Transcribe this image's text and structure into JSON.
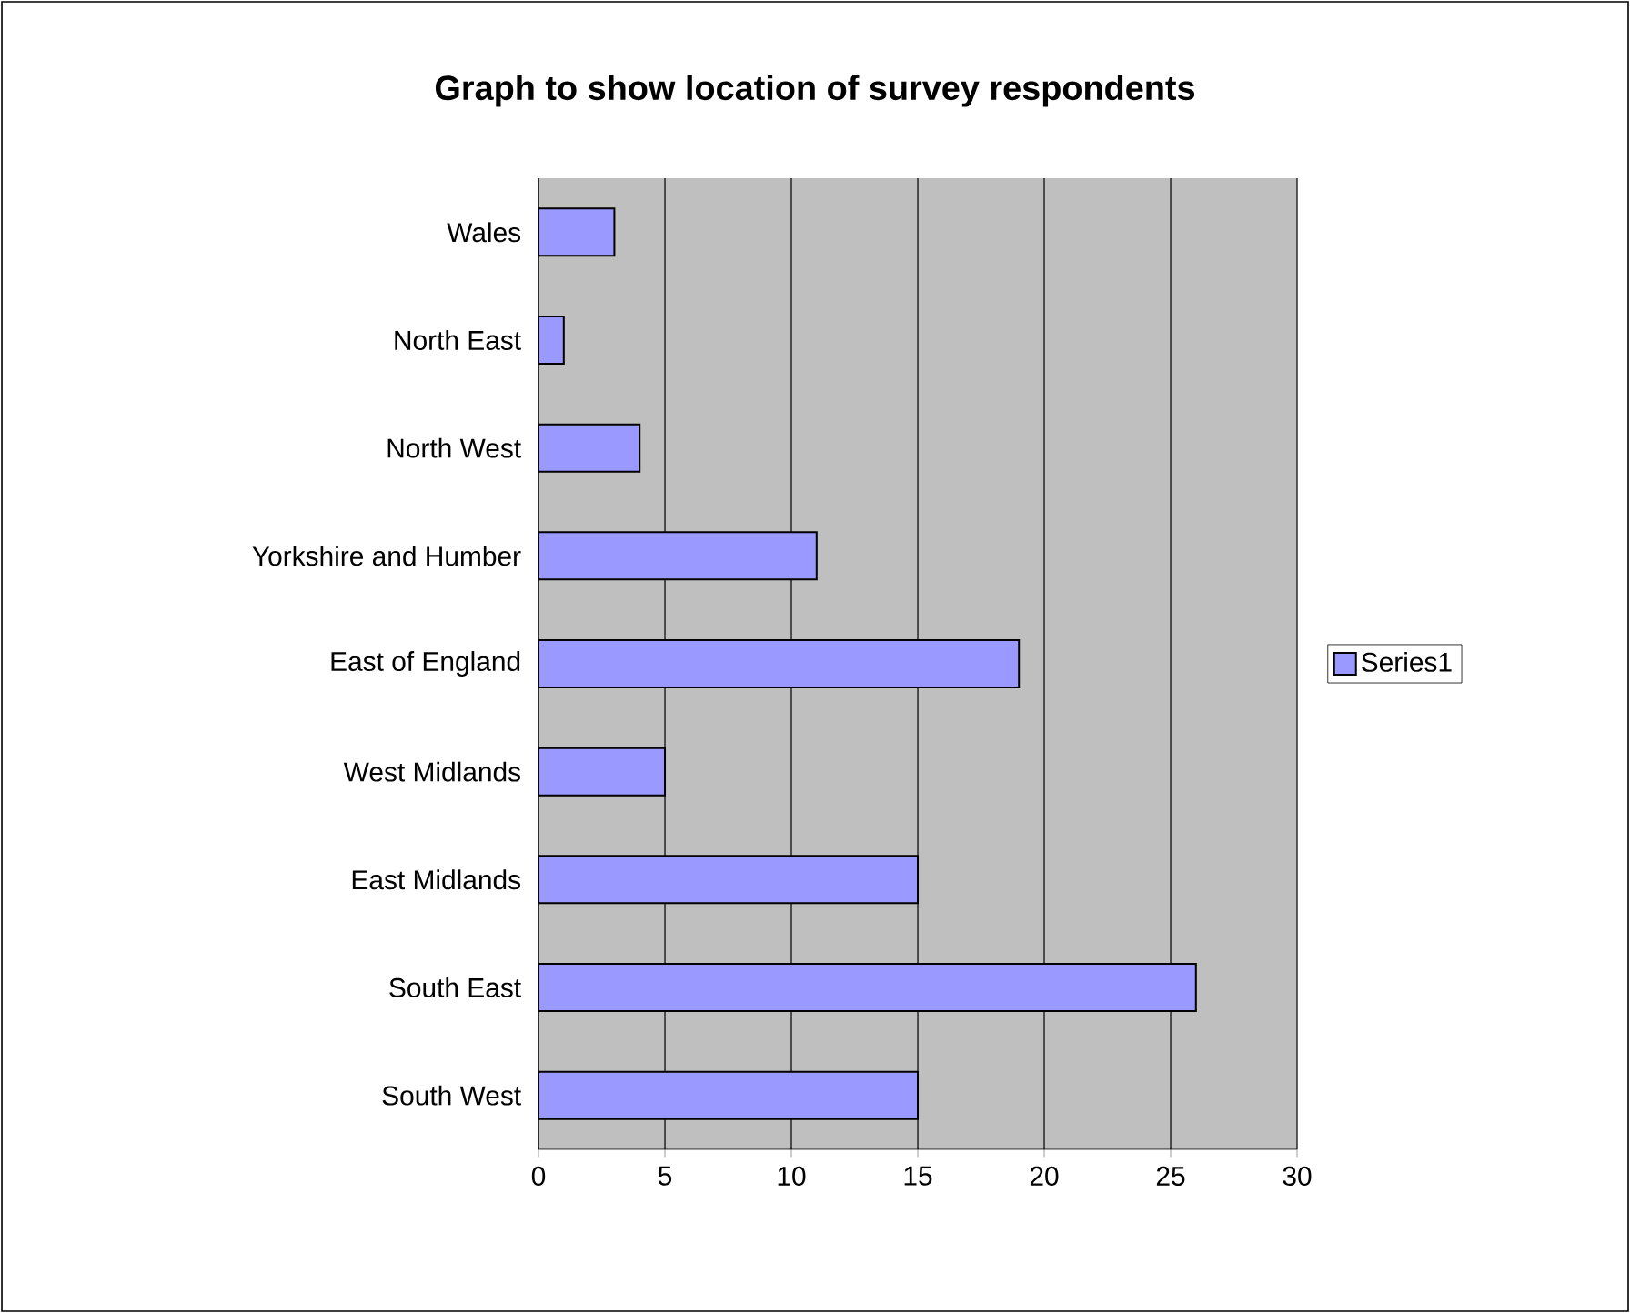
{
  "chart_data": {
    "type": "bar",
    "orientation": "horizontal",
    "title": "Graph to show location of survey respondents",
    "categories": [
      "Wales",
      "North East",
      "North West",
      "Yorkshire and Humber",
      "East of England",
      "West Midlands",
      "East Midlands",
      "South East",
      "South West"
    ],
    "series": [
      {
        "name": "Series1",
        "color": "#9999ff",
        "values": [
          3,
          1,
          4,
          11,
          19,
          5,
          15,
          26,
          15
        ]
      }
    ],
    "xlim": [
      0,
      30
    ],
    "xticks": [
      0,
      5,
      10,
      15,
      20,
      25,
      30
    ],
    "grid": "x",
    "legend": "right"
  }
}
